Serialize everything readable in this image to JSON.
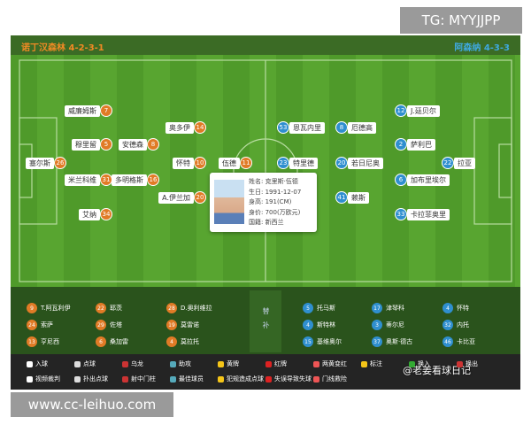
{
  "watermark_top": "TG: MYYJJPP",
  "watermark_bottom": "www.cc-leihuo.com",
  "overlay_credit": "@老姜看球日记",
  "home": {
    "name": "诺丁汉森林",
    "formation": "4-2-3-1",
    "players": [
      {
        "number": "7",
        "name": "威廉姆斯"
      },
      {
        "number": "5",
        "name": "穆里留"
      },
      {
        "number": "26",
        "name": "塞尔斯"
      },
      {
        "number": "31",
        "name": "米兰科维"
      },
      {
        "number": "34",
        "name": "艾纳"
      },
      {
        "number": "8",
        "name": "安德森"
      },
      {
        "number": "16",
        "name": "多明格斯"
      },
      {
        "number": "14",
        "name": "奥多伊"
      },
      {
        "number": "10",
        "name": "怀特"
      },
      {
        "number": "20",
        "name": "A.伊兰加"
      },
      {
        "number": "11",
        "name": "伍德"
      }
    ],
    "bench": [
      {
        "number": "9",
        "name": "T.阿瓦利伊"
      },
      {
        "number": "24",
        "name": "索萨"
      },
      {
        "number": "13",
        "name": "亨尼西"
      },
      {
        "number": "22",
        "name": "耶茨"
      },
      {
        "number": "29",
        "name": "佐塔"
      },
      {
        "number": "6",
        "name": "桑加雷"
      },
      {
        "number": "28",
        "name": "D.奥利维拉"
      },
      {
        "number": "19",
        "name": "莫雷诺"
      },
      {
        "number": "4",
        "name": "莫拉托"
      }
    ]
  },
  "away": {
    "name": "阿森纳",
    "formation": "4-3-3",
    "players": [
      {
        "number": "53",
        "name": "恩瓦内里"
      },
      {
        "number": "23",
        "name": "特里德"
      },
      {
        "number": "41",
        "name": "赖斯"
      },
      {
        "number": "8",
        "name": "厄德高"
      },
      {
        "number": "20",
        "name": "若日尼奥"
      },
      {
        "number": "12",
        "name": "J.廷贝尔"
      },
      {
        "number": "2",
        "name": "萨利巴"
      },
      {
        "number": "6",
        "name": "加布里埃尔"
      },
      {
        "number": "33",
        "name": "卡拉菲奥里"
      },
      {
        "number": "22",
        "name": "拉亚"
      }
    ],
    "bench": [
      {
        "number": "5",
        "name": "托马斯"
      },
      {
        "number": "4",
        "name": "斯特林"
      },
      {
        "number": "15",
        "name": "基维奥尔"
      },
      {
        "number": "17",
        "name": "津琴科"
      },
      {
        "number": "3",
        "name": "蒂尔尼"
      },
      {
        "number": "37",
        "name": "奥斯·德古"
      },
      {
        "number": "4",
        "name": "怀特"
      },
      {
        "number": "32",
        "name": "内托"
      },
      {
        "number": "46",
        "name": "卡比亚"
      }
    ]
  },
  "bench_title": "替补",
  "tooltip": [
    {
      "label": "姓名:",
      "value": "克里斯·伍德"
    },
    {
      "label": "生日:",
      "value": "1991-12-07"
    },
    {
      "label": "身高:",
      "value": "191(CM)"
    },
    {
      "label": "身价:",
      "value": "700(万欧元)"
    },
    {
      "label": "国籍:",
      "value": "新西兰"
    }
  ],
  "legend": [
    [
      "入球",
      "点球",
      "乌龙",
      "助攻",
      "黄牌",
      "红牌",
      "两黄变红",
      "标注",
      "换入",
      "换出"
    ],
    [
      "视频裁判",
      "扑出点球",
      "射中门柱",
      "最佳球员",
      "犯规造成点球",
      "失误导致失球",
      "门线救险"
    ]
  ]
}
